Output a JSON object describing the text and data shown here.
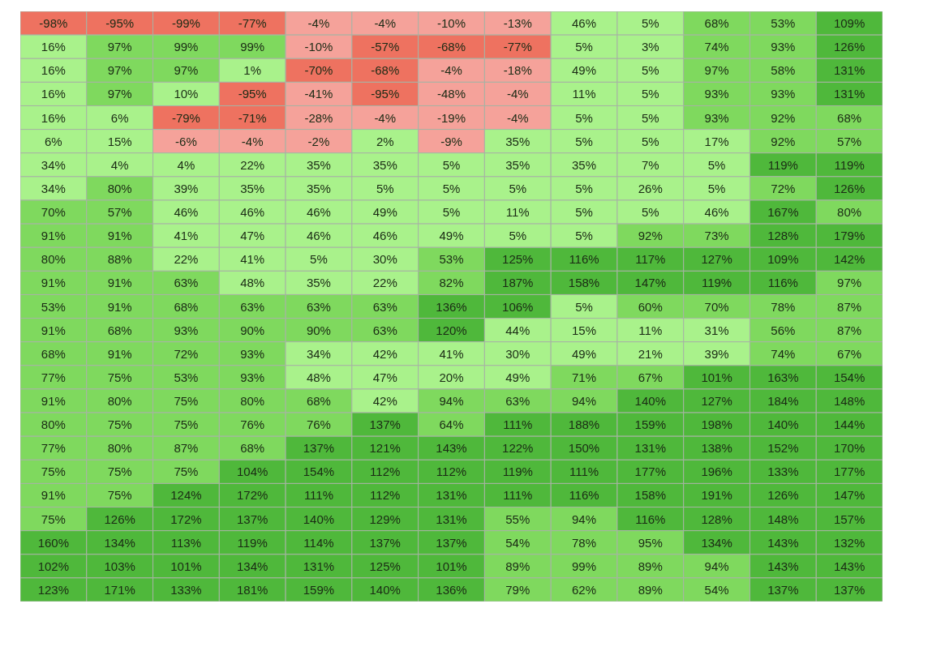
{
  "chart_data": {
    "type": "heatmap",
    "categories": [
      null,
      null,
      null,
      null,
      null,
      null,
      null,
      null,
      null,
      null,
      null,
      null,
      null
    ],
    "y_categories": [
      null,
      null,
      null,
      null,
      null,
      null,
      null,
      null,
      null,
      null,
      null,
      null,
      null,
      null,
      null,
      null,
      null,
      null,
      null,
      null,
      null,
      null,
      null,
      null,
      null
    ],
    "cells": [
      [
        -98,
        -95,
        -99,
        -77,
        -4,
        -4,
        -10,
        -13,
        46,
        5,
        68,
        53,
        109
      ],
      [
        16,
        97,
        99,
        99,
        -10,
        -57,
        -68,
        -77,
        5,
        3,
        74,
        93,
        126
      ],
      [
        16,
        97,
        97,
        1,
        -70,
        -68,
        -4,
        -18,
        49,
        5,
        97,
        58,
        131
      ],
      [
        16,
        97,
        10,
        -95,
        -41,
        -95,
        -48,
        -4,
        11,
        5,
        93,
        93,
        131
      ],
      [
        16,
        6,
        -79,
        -71,
        -28,
        -4,
        -19,
        -4,
        5,
        5,
        93,
        92,
        68
      ],
      [
        6,
        15,
        -6,
        -4,
        -2,
        2,
        -9,
        35,
        5,
        5,
        17,
        92,
        57
      ],
      [
        34,
        4,
        4,
        22,
        35,
        35,
        5,
        35,
        35,
        7,
        5,
        119,
        119
      ],
      [
        34,
        80,
        39,
        35,
        35,
        5,
        5,
        5,
        5,
        26,
        5,
        72,
        126
      ],
      [
        70,
        57,
        46,
        46,
        46,
        49,
        5,
        11,
        5,
        5,
        46,
        167,
        80
      ],
      [
        91,
        91,
        41,
        47,
        46,
        46,
        49,
        5,
        5,
        92,
        73,
        128,
        179
      ],
      [
        80,
        88,
        22,
        41,
        5,
        30,
        53,
        125,
        116,
        117,
        127,
        109,
        142
      ],
      [
        91,
        91,
        63,
        48,
        35,
        22,
        82,
        187,
        158,
        147,
        119,
        116,
        97
      ],
      [
        53,
        91,
        68,
        63,
        63,
        63,
        136,
        106,
        5,
        60,
        70,
        78,
        87
      ],
      [
        91,
        68,
        93,
        90,
        90,
        63,
        120,
        44,
        15,
        11,
        31,
        56,
        87
      ],
      [
        68,
        91,
        72,
        93,
        34,
        42,
        41,
        30,
        49,
        21,
        39,
        74,
        67
      ],
      [
        77,
        75,
        53,
        93,
        48,
        47,
        20,
        49,
        71,
        67,
        101,
        163,
        154
      ],
      [
        91,
        80,
        75,
        80,
        68,
        42,
        94,
        63,
        94,
        140,
        127,
        184,
        148
      ],
      [
        80,
        75,
        75,
        76,
        76,
        137,
        64,
        111,
        188,
        159,
        198,
        140,
        144
      ],
      [
        77,
        80,
        87,
        68,
        137,
        121,
        143,
        122,
        150,
        131,
        138,
        152,
        170
      ],
      [
        75,
        75,
        75,
        104,
        154,
        112,
        112,
        119,
        111,
        177,
        196,
        133,
        177
      ],
      [
        91,
        75,
        124,
        172,
        111,
        112,
        131,
        111,
        116,
        158,
        191,
        126,
        147
      ],
      [
        75,
        126,
        172,
        137,
        140,
        129,
        131,
        55,
        94,
        116,
        128,
        148,
        157
      ],
      [
        160,
        134,
        113,
        119,
        114,
        137,
        137,
        54,
        78,
        95,
        134,
        143,
        132
      ],
      [
        102,
        103,
        101,
        134,
        131,
        125,
        101,
        89,
        99,
        89,
        94,
        143,
        143
      ],
      [
        123,
        171,
        133,
        181,
        159,
        140,
        136,
        79,
        62,
        89,
        54,
        137,
        137
      ]
    ],
    "cell_labels": [
      [
        "-98%",
        "-95%",
        "-99%",
        "-77%",
        "-4%",
        "-4%",
        "-10%",
        "-13%",
        "46%",
        "5%",
        "68%",
        "53%",
        "109%"
      ],
      [
        "16%",
        "97%",
        "99%",
        "99%",
        "-10%",
        "-57%",
        "-68%",
        "-77%",
        "5%",
        "3%",
        "74%",
        "93%",
        "126%"
      ],
      [
        "16%",
        "97%",
        "97%",
        "1%",
        "-70%",
        "-68%",
        "-4%",
        "-18%",
        "49%",
        "5%",
        "97%",
        "58%",
        "131%"
      ],
      [
        "16%",
        "97%",
        "10%",
        "-95%",
        "-41%",
        "-95%",
        "-48%",
        "-4%",
        "11%",
        "5%",
        "93%",
        "93%",
        "131%"
      ],
      [
        "16%",
        "6%",
        "-79%",
        "-71%",
        "-28%",
        "-4%",
        "-19%",
        "-4%",
        "5%",
        "5%",
        "93%",
        "92%",
        "68%"
      ],
      [
        "6%",
        "15%",
        "-6%",
        "-4%",
        "-2%",
        "2%",
        "-9%",
        "35%",
        "5%",
        "5%",
        "17%",
        "92%",
        "57%"
      ],
      [
        "34%",
        "4%",
        "4%",
        "22%",
        "35%",
        "35%",
        "5%",
        "35%",
        "35%",
        "7%",
        "5%",
        "119%",
        "119%"
      ],
      [
        "34%",
        "80%",
        "39%",
        "35%",
        "35%",
        "5%",
        "5%",
        "5%",
        "5%",
        "26%",
        "5%",
        "72%",
        "126%"
      ],
      [
        "70%",
        "57%",
        "46%",
        "46%",
        "46%",
        "49%",
        "5%",
        "11%",
        "5%",
        "5%",
        "46%",
        "167%",
        "80%"
      ],
      [
        "91%",
        "91%",
        "41%",
        "47%",
        "46%",
        "46%",
        "49%",
        "5%",
        "5%",
        "92%",
        "73%",
        "128%",
        "179%"
      ],
      [
        "80%",
        "88%",
        "22%",
        "41%",
        "5%",
        "30%",
        "53%",
        "125%",
        "116%",
        "117%",
        "127%",
        "109%",
        "142%"
      ],
      [
        "91%",
        "91%",
        "63%",
        "48%",
        "35%",
        "22%",
        "82%",
        "187%",
        "158%",
        "147%",
        "119%",
        "116%",
        "97%"
      ],
      [
        "53%",
        "91%",
        "68%",
        "63%",
        "63%",
        "63%",
        "136%",
        "106%",
        "5%",
        "60%",
        "70%",
        "78%",
        "87%"
      ],
      [
        "91%",
        "68%",
        "93%",
        "90%",
        "90%",
        "63%",
        "120%",
        "44%",
        "15%",
        "11%",
        "31%",
        "56%",
        "87%"
      ],
      [
        "68%",
        "91%",
        "72%",
        "93%",
        "34%",
        "42%",
        "41%",
        "30%",
        "49%",
        "21%",
        "39%",
        "74%",
        "67%"
      ],
      [
        "77%",
        "75%",
        "53%",
        "93%",
        "48%",
        "47%",
        "20%",
        "49%",
        "71%",
        "67%",
        "101%",
        "163%",
        "154%"
      ],
      [
        "91%",
        "80%",
        "75%",
        "80%",
        "68%",
        "42%",
        "94%",
        "63%",
        "94%",
        "140%",
        "127%",
        "184%",
        "148%"
      ],
      [
        "80%",
        "75%",
        "75%",
        "76%",
        "76%",
        "137%",
        "64%",
        "111%",
        "188%",
        "159%",
        "198%",
        "140%",
        "144%"
      ],
      [
        "77%",
        "80%",
        "87%",
        "68%",
        "137%",
        "121%",
        "143%",
        "122%",
        "150%",
        "131%",
        "138%",
        "152%",
        "170%"
      ],
      [
        "75%",
        "75%",
        "75%",
        "104%",
        "154%",
        "112%",
        "112%",
        "119%",
        "111%",
        "177%",
        "196%",
        "133%",
        "177%"
      ],
      [
        "91%",
        "75%",
        "124%",
        "172%",
        "111%",
        "112%",
        "131%",
        "111%",
        "116%",
        "158%",
        "191%",
        "126%",
        "147%"
      ],
      [
        "75%",
        "126%",
        "172%",
        "137%",
        "140%",
        "129%",
        "131%",
        "55%",
        "94%",
        "116%",
        "128%",
        "148%",
        "157%"
      ],
      [
        "160%",
        "134%",
        "113%",
        "119%",
        "114%",
        "137%",
        "137%",
        "54%",
        "78%",
        "95%",
        "134%",
        "143%",
        "132%"
      ],
      [
        "102%",
        "103%",
        "101%",
        "134%",
        "131%",
        "125%",
        "101%",
        "89%",
        "99%",
        "89%",
        "94%",
        "143%",
        "143%"
      ],
      [
        "123%",
        "171%",
        "133%",
        "181%",
        "159%",
        "140%",
        "136%",
        "79%",
        "62%",
        "89%",
        "54%",
        "137%",
        "137%"
      ]
    ]
  }
}
